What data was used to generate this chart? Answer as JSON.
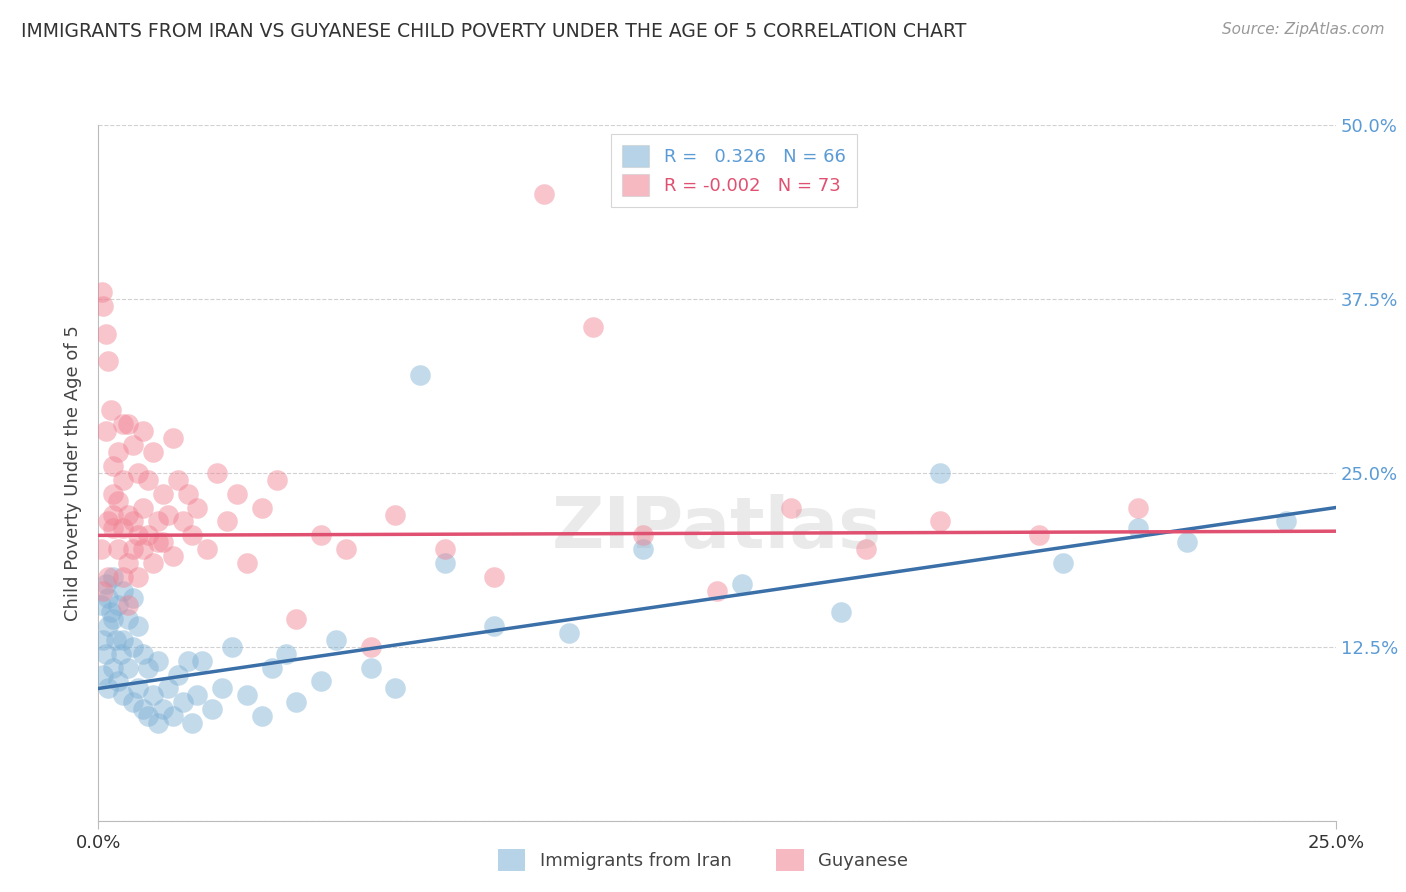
{
  "title": "IMMIGRANTS FROM IRAN VS GUYANESE CHILD POVERTY UNDER THE AGE OF 5 CORRELATION CHART",
  "source": "Source: ZipAtlas.com",
  "ylabel": "Child Poverty Under the Age of 5",
  "xlim": [
    0,
    0.25
  ],
  "ylim": [
    0,
    0.5
  ],
  "xticklabels": [
    "0.0%",
    "25.0%"
  ],
  "ytick_labels_right": [
    "",
    "12.5%",
    "25.0%",
    "37.5%",
    "50.0%"
  ],
  "legend_label1": "Immigrants from Iran",
  "legend_label2": "Guyanese",
  "iran_color": "#7bafd4",
  "guyanese_color": "#f08090",
  "iran_line_color": "#3a6fa8",
  "guyanese_line_color": "#e05070",
  "background_color": "#ffffff",
  "iran_R": 0.326,
  "iran_N": 66,
  "guyanese_R": -0.002,
  "guyanese_N": 73,
  "iran_x": [
    0.0005,
    0.001,
    0.001,
    0.0015,
    0.0015,
    0.002,
    0.002,
    0.002,
    0.0025,
    0.003,
    0.003,
    0.003,
    0.0035,
    0.004,
    0.004,
    0.0045,
    0.005,
    0.005,
    0.005,
    0.006,
    0.006,
    0.007,
    0.007,
    0.007,
    0.008,
    0.008,
    0.009,
    0.009,
    0.01,
    0.01,
    0.011,
    0.012,
    0.012,
    0.013,
    0.014,
    0.015,
    0.016,
    0.017,
    0.018,
    0.019,
    0.02,
    0.021,
    0.023,
    0.025,
    0.027,
    0.03,
    0.033,
    0.035,
    0.038,
    0.04,
    0.045,
    0.048,
    0.055,
    0.06,
    0.065,
    0.07,
    0.08,
    0.095,
    0.11,
    0.13,
    0.15,
    0.17,
    0.195,
    0.21,
    0.22,
    0.24
  ],
  "iran_y": [
    0.155,
    0.13,
    0.105,
    0.12,
    0.17,
    0.095,
    0.14,
    0.16,
    0.15,
    0.11,
    0.145,
    0.175,
    0.13,
    0.1,
    0.155,
    0.12,
    0.09,
    0.13,
    0.165,
    0.11,
    0.145,
    0.085,
    0.125,
    0.16,
    0.095,
    0.14,
    0.08,
    0.12,
    0.075,
    0.11,
    0.09,
    0.07,
    0.115,
    0.08,
    0.095,
    0.075,
    0.105,
    0.085,
    0.115,
    0.07,
    0.09,
    0.115,
    0.08,
    0.095,
    0.125,
    0.09,
    0.075,
    0.11,
    0.12,
    0.085,
    0.1,
    0.13,
    0.11,
    0.095,
    0.32,
    0.185,
    0.14,
    0.135,
    0.195,
    0.17,
    0.15,
    0.25,
    0.185,
    0.21,
    0.2,
    0.215
  ],
  "guyanese_x": [
    0.0005,
    0.0008,
    0.001,
    0.001,
    0.0015,
    0.0015,
    0.002,
    0.002,
    0.002,
    0.0025,
    0.003,
    0.003,
    0.003,
    0.003,
    0.004,
    0.004,
    0.004,
    0.005,
    0.005,
    0.005,
    0.005,
    0.006,
    0.006,
    0.006,
    0.006,
    0.007,
    0.007,
    0.007,
    0.008,
    0.008,
    0.008,
    0.009,
    0.009,
    0.009,
    0.01,
    0.01,
    0.011,
    0.011,
    0.012,
    0.012,
    0.013,
    0.013,
    0.014,
    0.015,
    0.015,
    0.016,
    0.017,
    0.018,
    0.019,
    0.02,
    0.022,
    0.024,
    0.026,
    0.028,
    0.03,
    0.033,
    0.036,
    0.04,
    0.045,
    0.05,
    0.055,
    0.06,
    0.07,
    0.08,
    0.09,
    0.1,
    0.11,
    0.125,
    0.14,
    0.155,
    0.17,
    0.19,
    0.21
  ],
  "guyanese_y": [
    0.195,
    0.38,
    0.37,
    0.165,
    0.35,
    0.28,
    0.33,
    0.215,
    0.175,
    0.295,
    0.235,
    0.21,
    0.255,
    0.22,
    0.23,
    0.195,
    0.265,
    0.285,
    0.21,
    0.175,
    0.245,
    0.285,
    0.22,
    0.185,
    0.155,
    0.27,
    0.215,
    0.195,
    0.25,
    0.205,
    0.175,
    0.28,
    0.225,
    0.195,
    0.245,
    0.205,
    0.185,
    0.265,
    0.215,
    0.2,
    0.235,
    0.2,
    0.22,
    0.275,
    0.19,
    0.245,
    0.215,
    0.235,
    0.205,
    0.225,
    0.195,
    0.25,
    0.215,
    0.235,
    0.185,
    0.225,
    0.245,
    0.145,
    0.205,
    0.195,
    0.125,
    0.22,
    0.195,
    0.175,
    0.45,
    0.355,
    0.205,
    0.165,
    0.225,
    0.195,
    0.215,
    0.205,
    0.225
  ],
  "iran_line_x0": 0.0,
  "iran_line_x1": 0.25,
  "iran_line_y0": 0.095,
  "iran_line_y1": 0.225,
  "guyanese_line_x0": 0.0,
  "guyanese_line_x1": 0.25,
  "guyanese_line_y0": 0.205,
  "guyanese_line_y1": 0.208
}
